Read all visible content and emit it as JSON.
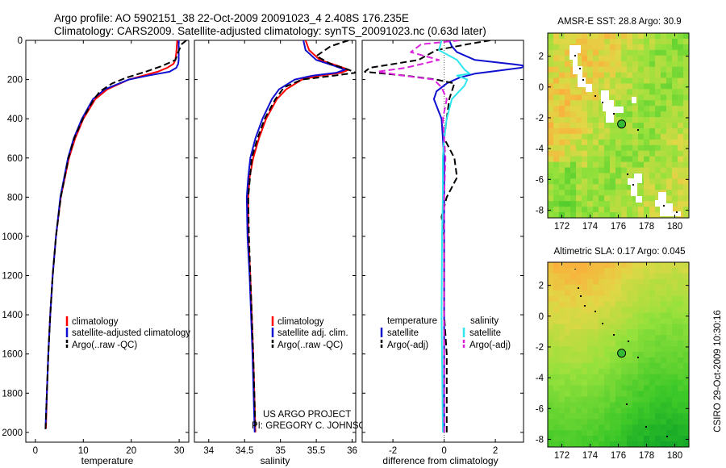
{
  "header": {
    "line1": "Argo profile: AO 5902151_38 22-Oct-2009 20091023_4 2.408S 176.235E",
    "line2": "Climatology: CARS2009. Satellite-adjusted climatology: synTS_20091023.nc (0.63d later)"
  },
  "colors": {
    "red": "#ff0000",
    "blue": "#1010d0",
    "black": "#000000",
    "cyan": "#2ee6ee",
    "magenta": "#dd22dd"
  },
  "credit": {
    "line1": "US ARGO PROJECT",
    "line2": "PI: GREGORY C. JOHNSON"
  },
  "side_label": "CSIRO 29-Oct-2009 10:30:16",
  "chart_data": [
    {
      "type": "line",
      "id": "temperature",
      "xlabel": "temperature",
      "ylabel": "",
      "xlim": [
        -2,
        32
      ],
      "ylim": [
        2050,
        0
      ],
      "xticks": [
        0,
        10,
        20,
        30
      ],
      "yticks": [
        0,
        200,
        400,
        600,
        800,
        1000,
        1200,
        1400,
        1600,
        1800,
        2000
      ],
      "legend": [
        "climatology",
        "satellite-adjusted climatology",
        "Argo(..raw -QC)"
      ],
      "series": [
        {
          "name": "climatology",
          "color": "red",
          "dash": false,
          "y": [
            0,
            60,
            100,
            120,
            140,
            160,
            180,
            200,
            250,
            300,
            400,
            500,
            600,
            800,
            1000,
            1200,
            1400,
            1600,
            1800,
            1980
          ],
          "x": [
            29.6,
            29.4,
            29.2,
            28.8,
            27.5,
            25.5,
            22.5,
            19.5,
            15,
            12.5,
            10,
            8.3,
            7,
            5.3,
            4.3,
            3.6,
            3.1,
            2.7,
            2.4,
            2.2
          ]
        },
        {
          "name": "satellite-adjusted climatology",
          "color": "blue",
          "dash": false,
          "y": [
            0,
            60,
            100,
            120,
            140,
            160,
            180,
            200,
            250,
            300,
            400,
            500,
            600,
            800,
            1000,
            1200,
            1400,
            1600,
            1800,
            1980
          ],
          "x": [
            29.9,
            29.9,
            29.9,
            29.8,
            29.4,
            28,
            23.5,
            19.5,
            14.5,
            12,
            9.7,
            8,
            6.8,
            5.2,
            4.3,
            3.6,
            3.1,
            2.7,
            2.4,
            2.1
          ]
        },
        {
          "name": "Argo(..raw -QC)",
          "color": "black",
          "dash": true,
          "y": [
            0,
            20,
            60,
            100,
            130,
            160,
            190,
            220,
            260,
            300,
            400,
            500,
            600,
            800,
            1000,
            1200,
            1400,
            1600,
            1800,
            1990
          ],
          "x": [
            31.5,
            30.5,
            29.8,
            29.2,
            26.5,
            23,
            19,
            16,
            13.5,
            12.2,
            9.9,
            8.1,
            6.9,
            5.3,
            4.3,
            3.6,
            3.1,
            2.7,
            2.4,
            2.1
          ]
        }
      ]
    },
    {
      "type": "line",
      "id": "salinity",
      "xlabel": "salinity",
      "ylabel": "",
      "xlim": [
        33.8,
        36.05
      ],
      "ylim": [
        2050,
        0
      ],
      "xticks": [
        34,
        34.5,
        35,
        35.5,
        36
      ],
      "xticklabels": [
        "34",
        "34.5",
        "35",
        "35.5",
        "36"
      ],
      "legend": [
        "climatology",
        "satellite adj. clim.",
        "Argo(..raw -QC)"
      ],
      "series": [
        {
          "name": "climatology",
          "color": "red",
          "dash": false,
          "y": [
            0,
            50,
            100,
            130,
            150,
            165,
            180,
            200,
            250,
            300,
            400,
            500,
            600,
            700,
            800,
            1000,
            1200,
            1600,
            2000
          ],
          "x": [
            35.35,
            35.4,
            35.55,
            35.8,
            35.95,
            35.85,
            35.55,
            35.3,
            35.08,
            34.95,
            34.8,
            34.7,
            34.62,
            34.57,
            34.55,
            34.55,
            34.58,
            34.62,
            34.65
          ]
        },
        {
          "name": "satellite adj. clim.",
          "color": "blue",
          "dash": false,
          "y": [
            0,
            50,
            100,
            130,
            150,
            165,
            180,
            200,
            250,
            300,
            400,
            500,
            600,
            700,
            800,
            1000,
            1200,
            1600,
            2000
          ],
          "x": [
            35.32,
            35.35,
            35.5,
            35.75,
            35.9,
            35.78,
            35.45,
            35.2,
            34.98,
            34.88,
            34.75,
            34.65,
            34.58,
            34.55,
            34.53,
            34.54,
            34.57,
            34.61,
            34.64
          ]
        },
        {
          "name": "Argo(..raw -QC)",
          "color": "black",
          "dash": true,
          "y": [
            0,
            30,
            80,
            120,
            150,
            165,
            180,
            200,
            240,
            300,
            400,
            500,
            600,
            800,
            1000,
            1200,
            1600,
            1990
          ],
          "x": [
            35.95,
            35.7,
            35.5,
            35.7,
            35.95,
            36.05,
            35.75,
            35.3,
            35.05,
            34.93,
            34.78,
            34.68,
            34.6,
            34.55,
            34.56,
            34.58,
            34.62,
            34.65
          ]
        }
      ]
    },
    {
      "type": "line",
      "id": "difference",
      "xlabel": "difference from climatology",
      "ylabel": "",
      "xlim": [
        -3.2,
        3.1
      ],
      "ylim": [
        2050,
        0
      ],
      "xticks": [
        -2,
        0,
        2
      ],
      "legend_titles": [
        "temperature",
        "salinity"
      ],
      "legend": [
        "satellite",
        "Argo(-adj)",
        "satellite",
        "Argo(-adj)"
      ],
      "series": [
        {
          "name": "temperature satellite",
          "color": "blue",
          "dash": false,
          "y": [
            0,
            30,
            60,
            100,
            120,
            130,
            140,
            160,
            170,
            190,
            220,
            260,
            300,
            400,
            500,
            600,
            800,
            1000,
            1400,
            2000
          ],
          "x": [
            0.2,
            0.3,
            0.5,
            1.2,
            2.6,
            3.2,
            3,
            1.8,
            1.2,
            0.6,
            0.1,
            -0.3,
            -0.4,
            -0.1,
            -0.05,
            0,
            0,
            0,
            0,
            0
          ]
        },
        {
          "name": "temperature Argo(-adj)",
          "color": "black",
          "dash": true,
          "y": [
            0,
            20,
            50,
            100,
            140,
            160,
            180,
            200,
            220,
            300,
            400,
            500,
            600,
            700,
            800,
            900,
            1000,
            1200,
            1400,
            1600,
            2000
          ],
          "x": [
            1.8,
            0.9,
            -0.3,
            -1,
            -2.9,
            -3.1,
            -1.5,
            -0.3,
            0.4,
            0.2,
            0.1,
            0,
            0.4,
            0.5,
            0.1,
            -0.1,
            0,
            0,
            0,
            0.1,
            0.1
          ]
        },
        {
          "name": "salinity satellite",
          "color": "cyan",
          "dash": false,
          "y": [
            0,
            50,
            100,
            150,
            170,
            180,
            200,
            230,
            300,
            400,
            500,
            600,
            800,
            1000,
            1400,
            2000
          ],
          "x": [
            -0.1,
            -0.2,
            0.5,
            0.8,
            1,
            0.5,
            0.9,
            0.8,
            0.3,
            0.1,
            0,
            -0.05,
            -0.05,
            -0.08,
            -0.1,
            -0.05
          ]
        },
        {
          "name": "salinity Argo(-adj)",
          "color": "magenta",
          "dash": true,
          "y": [
            0,
            20,
            60,
            100,
            140,
            160,
            180,
            200,
            240,
            300,
            400,
            500,
            600,
            800,
            1000,
            1500,
            2000
          ],
          "x": [
            0.6,
            -0.9,
            -1.3,
            -0.2,
            -1.5,
            -2.6,
            -1.6,
            -0.4,
            -0.1,
            0.1,
            -0.05,
            0,
            0.05,
            0,
            0,
            0,
            0
          ]
        }
      ]
    },
    {
      "type": "heatmap",
      "id": "sst",
      "title": "AMSR-E SST: 28.8 Argo: 30.9",
      "xlim": [
        171,
        181
      ],
      "ylim": [
        -8.5,
        3.5
      ],
      "xticks": [
        172,
        174,
        176,
        178,
        180
      ],
      "yticks": [
        -8,
        -6,
        -4,
        -2,
        0,
        2
      ],
      "argo_point": {
        "x": 176.235,
        "y": -2.408
      }
    },
    {
      "type": "heatmap",
      "id": "sla",
      "title": "Altimetric SLA: 0.17 Argo: 0.045",
      "xlim": [
        171,
        181
      ],
      "ylim": [
        -8.5,
        3.5
      ],
      "xticks": [
        172,
        174,
        176,
        178,
        180
      ],
      "yticks": [
        -8,
        -6,
        -4,
        -2,
        0,
        2
      ],
      "argo_point": {
        "x": 176.235,
        "y": -2.408
      }
    }
  ]
}
